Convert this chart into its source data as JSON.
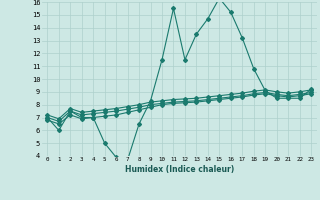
{
  "xlabel": "Humidex (Indice chaleur)",
  "x": [
    0,
    1,
    2,
    3,
    4,
    5,
    6,
    7,
    8,
    9,
    10,
    11,
    12,
    13,
    14,
    15,
    16,
    17,
    18,
    19,
    20,
    21,
    22,
    23
  ],
  "line1": [
    7.0,
    6.0,
    7.5,
    7.0,
    7.0,
    5.0,
    3.9,
    3.7,
    6.5,
    8.3,
    11.5,
    15.5,
    11.5,
    13.5,
    14.7,
    16.3,
    15.2,
    13.2,
    10.8,
    9.1,
    8.5,
    8.5,
    8.5,
    9.2
  ],
  "line2": [
    6.8,
    6.5,
    7.2,
    6.9,
    7.0,
    7.1,
    7.2,
    7.4,
    7.6,
    7.8,
    8.0,
    8.1,
    8.15,
    8.2,
    8.3,
    8.4,
    8.5,
    8.6,
    8.75,
    8.85,
    8.7,
    8.6,
    8.7,
    8.85
  ],
  "line3": [
    7.0,
    6.7,
    7.5,
    7.2,
    7.3,
    7.4,
    7.5,
    7.65,
    7.8,
    8.0,
    8.1,
    8.2,
    8.25,
    8.3,
    8.4,
    8.5,
    8.6,
    8.7,
    8.85,
    8.95,
    8.8,
    8.7,
    8.8,
    8.95
  ],
  "line4": [
    7.2,
    6.9,
    7.7,
    7.4,
    7.5,
    7.6,
    7.7,
    7.85,
    8.0,
    8.2,
    8.3,
    8.4,
    8.45,
    8.5,
    8.6,
    8.7,
    8.8,
    8.9,
    9.05,
    9.15,
    9.0,
    8.9,
    9.0,
    9.15
  ],
  "line_color": "#1a7a6e",
  "bg_color": "#cde8e4",
  "grid_color": "#aed0cc",
  "ylim": [
    4,
    16
  ],
  "xlim": [
    -0.5,
    23.5
  ],
  "yticks": [
    4,
    5,
    6,
    7,
    8,
    9,
    10,
    11,
    12,
    13,
    14,
    15,
    16
  ],
  "xticks": [
    0,
    1,
    2,
    3,
    4,
    5,
    6,
    7,
    8,
    9,
    10,
    11,
    12,
    13,
    14,
    15,
    16,
    17,
    18,
    19,
    20,
    21,
    22,
    23
  ]
}
